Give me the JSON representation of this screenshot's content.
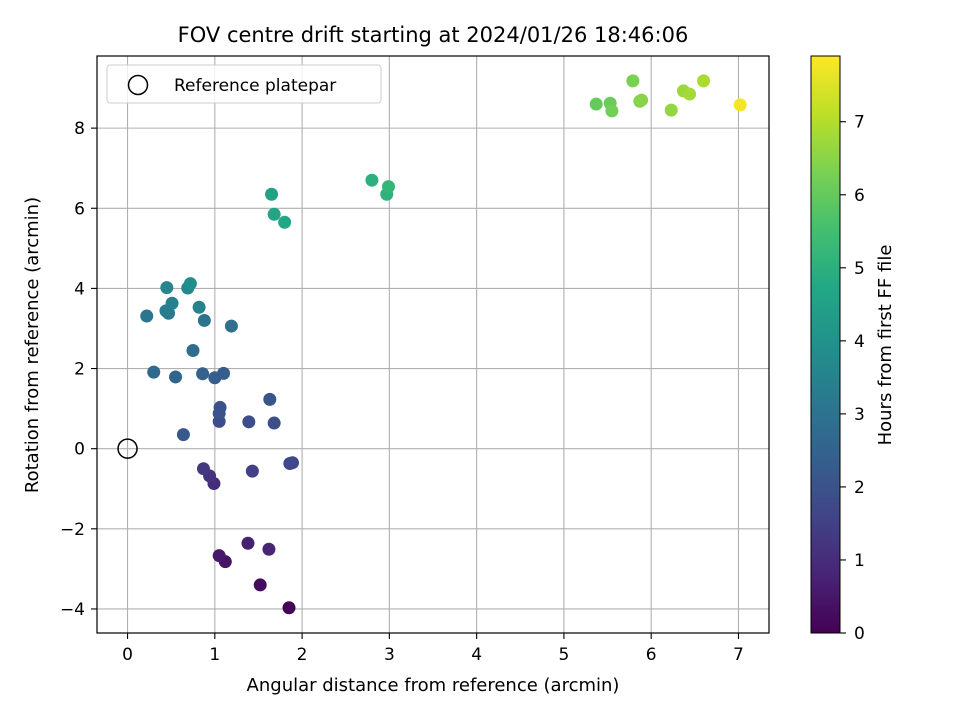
{
  "chart_data": {
    "type": "scatter",
    "title": "FOV centre drift starting at 2024/01/26 18:46:06",
    "xlabel": "Angular distance from reference (arcmin)",
    "ylabel": "Rotation from reference (arcmin)",
    "xlim": [
      -0.35,
      7.35
    ],
    "ylim": [
      -4.6,
      9.8
    ],
    "xticks": [
      0,
      1,
      2,
      3,
      4,
      5,
      6,
      7
    ],
    "yticks": [
      -4,
      -2,
      0,
      2,
      4,
      6,
      8
    ],
    "grid": true,
    "legend": {
      "placement": "top-left",
      "entries": [
        "Reference platepar"
      ]
    },
    "reference_point": {
      "x": 0,
      "y": 0,
      "label": "Reference platepar"
    },
    "colorbar": {
      "label": "Hours from first FF file",
      "range": [
        0,
        7.9
      ],
      "ticks": [
        0,
        1,
        2,
        3,
        4,
        5,
        6,
        7
      ],
      "colormap": "viridis"
    },
    "points": [
      {
        "x": 1.85,
        "y": -3.97,
        "c": 0.05
      },
      {
        "x": 1.52,
        "y": -3.4,
        "c": 0.25
      },
      {
        "x": 1.12,
        "y": -2.82,
        "c": 0.4
      },
      {
        "x": 1.05,
        "y": -2.67,
        "c": 0.55
      },
      {
        "x": 1.38,
        "y": -2.36,
        "c": 0.7
      },
      {
        "x": 1.62,
        "y": -2.51,
        "c": 0.85
      },
      {
        "x": 0.99,
        "y": -0.87,
        "c": 1.0
      },
      {
        "x": 0.94,
        "y": -0.68,
        "c": 1.15
      },
      {
        "x": 0.87,
        "y": -0.5,
        "c": 1.3
      },
      {
        "x": 1.43,
        "y": -0.56,
        "c": 1.5
      },
      {
        "x": 1.86,
        "y": -0.37,
        "c": 1.6
      },
      {
        "x": 1.89,
        "y": -0.35,
        "c": 1.7
      },
      {
        "x": 1.05,
        "y": 0.68,
        "c": 1.8
      },
      {
        "x": 1.39,
        "y": 0.67,
        "c": 1.85
      },
      {
        "x": 1.68,
        "y": 0.64,
        "c": 1.9
      },
      {
        "x": 1.05,
        "y": 0.88,
        "c": 2.0
      },
      {
        "x": 1.06,
        "y": 1.03,
        "c": 2.05
      },
      {
        "x": 1.63,
        "y": 1.23,
        "c": 2.1
      },
      {
        "x": 0.64,
        "y": 0.35,
        "c": 2.2
      },
      {
        "x": 1.0,
        "y": 1.77,
        "c": 2.3
      },
      {
        "x": 1.1,
        "y": 1.88,
        "c": 2.35
      },
      {
        "x": 0.86,
        "y": 1.87,
        "c": 2.45
      },
      {
        "x": 0.55,
        "y": 1.79,
        "c": 2.55
      },
      {
        "x": 0.3,
        "y": 1.91,
        "c": 2.65
      },
      {
        "x": 0.75,
        "y": 2.45,
        "c": 2.8
      },
      {
        "x": 1.19,
        "y": 3.06,
        "c": 2.9
      },
      {
        "x": 0.88,
        "y": 3.2,
        "c": 3.0
      },
      {
        "x": 0.22,
        "y": 3.31,
        "c": 3.1
      },
      {
        "x": 0.47,
        "y": 3.38,
        "c": 3.2
      },
      {
        "x": 0.44,
        "y": 3.44,
        "c": 3.3
      },
      {
        "x": 0.51,
        "y": 3.63,
        "c": 3.4
      },
      {
        "x": 0.82,
        "y": 3.53,
        "c": 3.5
      },
      {
        "x": 0.45,
        "y": 4.02,
        "c": 3.6
      },
      {
        "x": 0.69,
        "y": 4.01,
        "c": 3.7
      },
      {
        "x": 0.72,
        "y": 4.12,
        "c": 3.8
      },
      {
        "x": 1.65,
        "y": 6.35,
        "c": 4.5
      },
      {
        "x": 1.68,
        "y": 5.85,
        "c": 4.6
      },
      {
        "x": 1.8,
        "y": 5.65,
        "c": 4.7
      },
      {
        "x": 2.8,
        "y": 6.7,
        "c": 5.0
      },
      {
        "x": 2.97,
        "y": 6.35,
        "c": 5.1
      },
      {
        "x": 2.99,
        "y": 6.54,
        "c": 5.2
      },
      {
        "x": 5.37,
        "y": 8.6,
        "c": 6.0
      },
      {
        "x": 5.53,
        "y": 8.62,
        "c": 6.1
      },
      {
        "x": 5.55,
        "y": 8.43,
        "c": 6.2
      },
      {
        "x": 5.79,
        "y": 9.18,
        "c": 6.3
      },
      {
        "x": 5.87,
        "y": 8.67,
        "c": 6.4
      },
      {
        "x": 5.89,
        "y": 8.7,
        "c": 6.5
      },
      {
        "x": 6.23,
        "y": 8.45,
        "c": 6.6
      },
      {
        "x": 6.37,
        "y": 8.93,
        "c": 6.7
      },
      {
        "x": 6.44,
        "y": 8.85,
        "c": 6.8
      },
      {
        "x": 6.6,
        "y": 9.18,
        "c": 6.9
      },
      {
        "x": 7.02,
        "y": 8.58,
        "c": 7.8
      }
    ]
  }
}
